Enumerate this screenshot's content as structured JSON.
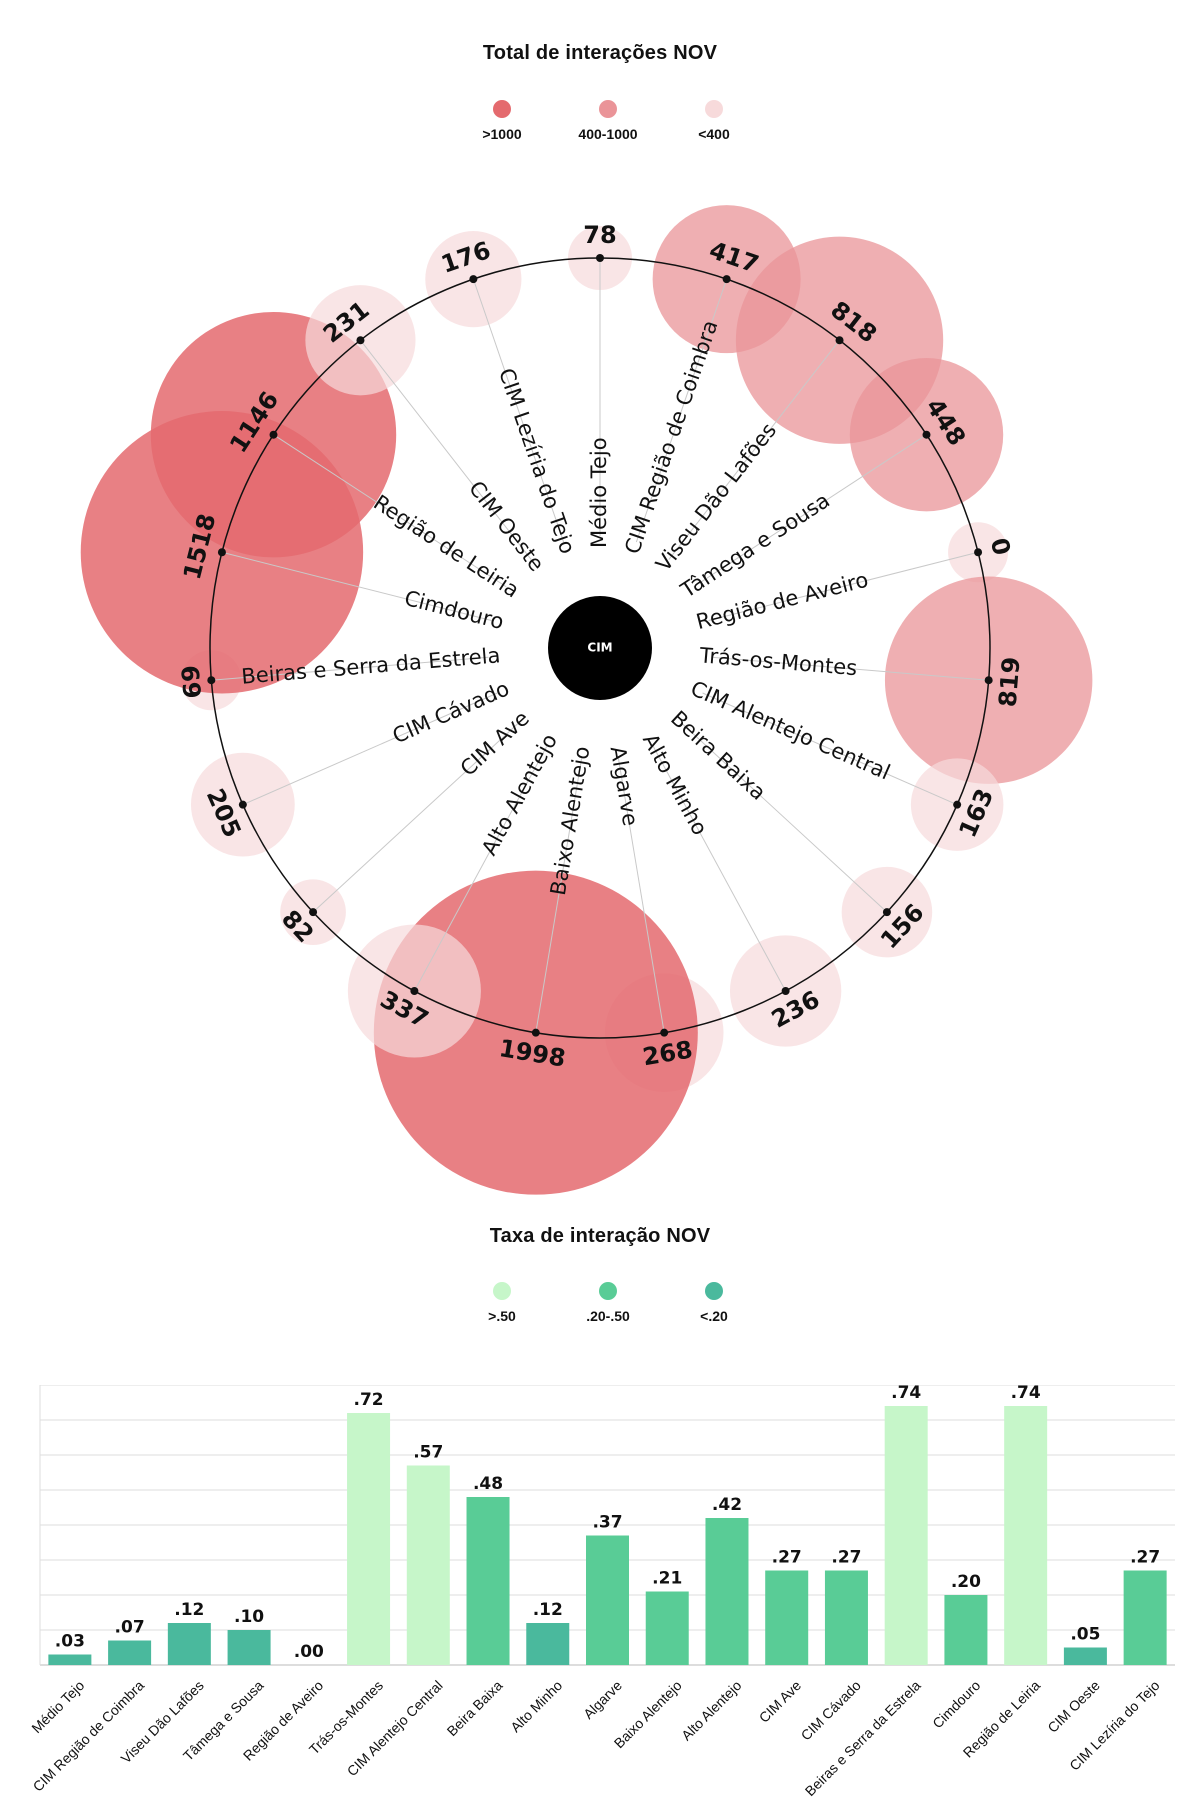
{
  "colors": {
    "high": "#e46a6e",
    "mid": "#ea9498",
    "low": "#f7dadb",
    "rate_high": "#c6f6c9",
    "rate_mid": "#59cc96",
    "rate_low": "#4ab99d",
    "center": "#000000"
  },
  "top_section": {
    "title": "Total de interações NOV",
    "legend": [
      {
        "label": ">1000",
        "color_key": "high"
      },
      {
        "label": "400-1000",
        "color_key": "mid"
      },
      {
        "label": "<400",
        "color_key": "low"
      }
    ],
    "center_label": "CIM"
  },
  "bottom_section": {
    "title": "Taxa de interação NOV",
    "legend": [
      {
        "label": ">.50",
        "color_key": "rate_high"
      },
      {
        "label": ".20-.50",
        "color_key": "rate_mid"
      },
      {
        "label": "<.20",
        "color_key": "rate_low"
      }
    ]
  },
  "chart_data": [
    {
      "type": "bubble-radial",
      "title": "Total de interações NOV",
      "series_name": "Total de interações NOV",
      "legend_thresholds": [
        ">1000",
        "400-1000",
        "<400"
      ],
      "categories": [
        "Médio Tejo",
        "CIM Região de Coimbra",
        "Viseu Dão Lafões",
        "Tâmega e Sousa",
        "Região de Aveiro",
        "Trás-os-Montes",
        "CIM Alentejo Central",
        "Beira Baixa",
        "Alto Minho",
        "Algarve",
        "Baixo Alentejo",
        "Alto Alentejo",
        "CIM Ave",
        "CIM Cávado",
        "Beiras e Serra da Estrela",
        "Cimdouro",
        "Região de Leiria",
        "CIM Oeste",
        "CIM Lezíria do Tejo"
      ],
      "values": [
        78,
        417,
        818,
        448,
        0,
        819,
        163,
        156,
        236,
        268,
        1998,
        337,
        82,
        205,
        69,
        1518,
        1146,
        231,
        176
      ],
      "value_labels": [
        "78",
        "417",
        "818",
        "448",
        "0",
        "819",
        "163",
        "156",
        "236",
        "268",
        "1998",
        "337",
        "82",
        "205",
        "69",
        "1518",
        "1146",
        "231",
        "176"
      ]
    },
    {
      "type": "bar",
      "title": "Taxa de interação NOV",
      "series_name": "Taxa de interação NOV",
      "legend_thresholds": [
        ">.50",
        ".20-.50",
        "<.20"
      ],
      "categories": [
        "Médio Tejo",
        "CIM Região de Coimbra",
        "Viseu Dão Lafões",
        "Tâmega e Sousa",
        "Região de Aveiro",
        "Trás-os-Montes",
        "CIM Alentejo Central",
        "Beira Baixa",
        "Alto Minho",
        "Algarve",
        "Baixo Alentejo",
        "Alto Alentejo",
        "CIM Ave",
        "CIM Cávado",
        "Beiras e Serra da Estrela",
        "Cimdouro",
        "Região de Leiria",
        "CIM Oeste",
        "CIM Lezíria do Tejo"
      ],
      "values": [
        0.03,
        0.07,
        0.12,
        0.1,
        0.0,
        0.72,
        0.57,
        0.48,
        0.12,
        0.37,
        0.21,
        0.42,
        0.27,
        0.27,
        0.74,
        0.2,
        0.74,
        0.05,
        0.27
      ],
      "value_labels": [
        ".03",
        ".07",
        ".12",
        ".10",
        ".00",
        ".72",
        ".57",
        ".48",
        ".12",
        ".37",
        ".21",
        ".42",
        ".27",
        ".27",
        ".74",
        ".20",
        ".74",
        ".05",
        ".27"
      ],
      "ylim": [
        0,
        0.8
      ],
      "grid": true
    }
  ]
}
